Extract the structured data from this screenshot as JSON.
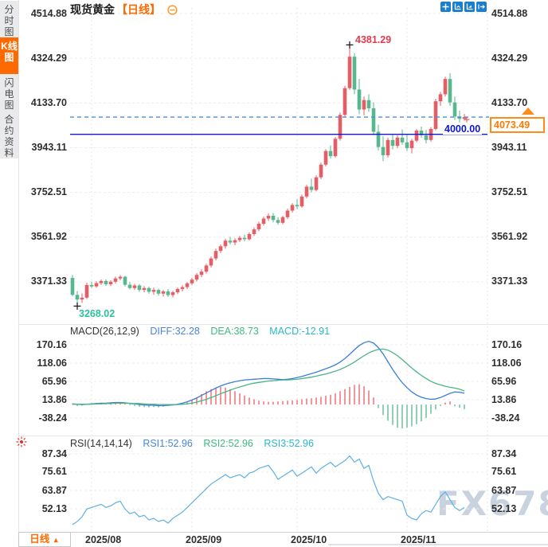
{
  "sidebar": {
    "tabs": [
      {
        "label": "分时图",
        "active": false
      },
      {
        "label": "K线图",
        "active": true
      },
      {
        "label": "闪电图",
        "active": false
      },
      {
        "label": "合约资料",
        "active": false
      }
    ]
  },
  "header": {
    "title": "现货黄金",
    "period_tag": "【日线】"
  },
  "colors": {
    "up": "#e75d66",
    "down": "#57b78e",
    "accent_orange": "#ff6a00",
    "hline_blue": "#1515d8",
    "dashed_blue": "#4b8fd6",
    "diff_blue": "#3c7ed6",
    "dea_green": "#4ab585",
    "macd_cyan": "#2ab5cc",
    "rsi_line": "#5fb0e6",
    "grid": "#ececeb",
    "marker": "#111111"
  },
  "bottom": {
    "period_label": "日线",
    "period_arrow": "▲",
    "dates": [
      "2025/08",
      "2025/09",
      "2025/10",
      "2025/11"
    ]
  },
  "watermark": {
    "text": "FX678"
  },
  "chart_data": [
    {
      "type": "candlestick",
      "title": "现货黄金 日线",
      "yticks": [
        "4514.88",
        "4324.29",
        "4133.70",
        "3943.11",
        "3752.51",
        "3561.92",
        "3371.33"
      ],
      "ylim": [
        3268.02,
        4514.88
      ],
      "month_ticks": [
        {
          "label": "2025/08",
          "index": 4
        },
        {
          "label": "2025/09",
          "index": 25
        },
        {
          "label": "2025/10",
          "index": 47
        },
        {
          "label": "2025/11",
          "index": 70
        }
      ],
      "high_annotation": {
        "index": 58,
        "value": 4381.29,
        "label": "4381.29"
      },
      "low_annotation": {
        "index": 1,
        "value": 3268.02,
        "label": "3268.02"
      },
      "hline": {
        "value": 4000,
        "label": "4000.00"
      },
      "current_price": {
        "value": 4073.49,
        "label": "4073.49"
      },
      "candles": [
        [
          3388,
          3400,
          3310,
          3316
        ],
        [
          3316,
          3332,
          3268.02,
          3296
        ],
        [
          3296,
          3322,
          3282,
          3304
        ],
        [
          3304,
          3368,
          3298,
          3358
        ],
        [
          3358,
          3372,
          3344,
          3352
        ],
        [
          3352,
          3374,
          3346,
          3366
        ],
        [
          3366,
          3382,
          3358,
          3375
        ],
        [
          3375,
          3382,
          3354,
          3361
        ],
        [
          3361,
          3378,
          3353,
          3372
        ],
        [
          3372,
          3394,
          3364,
          3386
        ],
        [
          3386,
          3400,
          3378,
          3393
        ],
        [
          3393,
          3397,
          3352,
          3359
        ],
        [
          3359,
          3371,
          3339,
          3345
        ],
        [
          3345,
          3363,
          3337,
          3356
        ],
        [
          3356,
          3362,
          3329,
          3337
        ],
        [
          3337,
          3353,
          3327,
          3345
        ],
        [
          3345,
          3351,
          3321,
          3329
        ],
        [
          3329,
          3347,
          3317,
          3337
        ],
        [
          3337,
          3343,
          3313,
          3321
        ],
        [
          3321,
          3337,
          3309,
          3331
        ],
        [
          3331,
          3341,
          3307,
          3315
        ],
        [
          3315,
          3333,
          3305,
          3327
        ],
        [
          3327,
          3347,
          3319,
          3341
        ],
        [
          3341,
          3357,
          3331,
          3349
        ],
        [
          3349,
          3371,
          3341,
          3365
        ],
        [
          3365,
          3389,
          3357,
          3381
        ],
        [
          3381,
          3409,
          3373,
          3401
        ],
        [
          3401,
          3425,
          3391,
          3415
        ],
        [
          3415,
          3449,
          3407,
          3441
        ],
        [
          3441,
          3479,
          3433,
          3471
        ],
        [
          3471,
          3513,
          3463,
          3503
        ],
        [
          3503,
          3531,
          3493,
          3523
        ],
        [
          3523,
          3555,
          3513,
          3547
        ],
        [
          3547,
          3563,
          3531,
          3539
        ],
        [
          3539,
          3557,
          3527,
          3549
        ],
        [
          3549,
          3567,
          3541,
          3559
        ],
        [
          3559,
          3573,
          3545,
          3553
        ],
        [
          3553,
          3583,
          3547,
          3575
        ],
        [
          3575,
          3603,
          3567,
          3595
        ],
        [
          3595,
          3627,
          3587,
          3619
        ],
        [
          3619,
          3649,
          3611,
          3641
        ],
        [
          3641,
          3663,
          3631,
          3653
        ],
        [
          3653,
          3665,
          3625,
          3635
        ],
        [
          3635,
          3647,
          3615,
          3623
        ],
        [
          3623,
          3653,
          3617,
          3647
        ],
        [
          3647,
          3683,
          3639,
          3675
        ],
        [
          3675,
          3707,
          3667,
          3699
        ],
        [
          3699,
          3725,
          3681,
          3693
        ],
        [
          3693,
          3743,
          3687,
          3735
        ],
        [
          3735,
          3785,
          3727,
          3777
        ],
        [
          3777,
          3811,
          3753,
          3763
        ],
        [
          3763,
          3825,
          3757,
          3817
        ],
        [
          3817,
          3879,
          3809,
          3871
        ],
        [
          3871,
          3937,
          3863,
          3929
        ],
        [
          3929,
          3953,
          3897,
          3907
        ],
        [
          3907,
          3989,
          3901,
          3981
        ],
        [
          3981,
          4093,
          3973,
          4083
        ],
        [
          4083,
          4207,
          4075,
          4197
        ],
        [
          4197,
          4381.29,
          4189,
          4331
        ],
        [
          4331,
          4346,
          4171,
          4191
        ],
        [
          4191,
          4236,
          4086,
          4106
        ],
        [
          4106,
          4161,
          4081,
          4146
        ],
        [
          4146,
          4171,
          4096,
          4111
        ],
        [
          4111,
          4136,
          3996,
          4011
        ],
        [
          4011,
          4041,
          3931,
          3946
        ],
        [
          3946,
          3991,
          3886,
          3911
        ],
        [
          3911,
          3986,
          3901,
          3976
        ],
        [
          3976,
          4001,
          3936,
          3951
        ],
        [
          3951,
          3996,
          3941,
          3986
        ],
        [
          3986,
          4021,
          3956,
          3966
        ],
        [
          3966,
          3999,
          3929,
          3941
        ],
        [
          3941,
          3981,
          3919,
          3973
        ],
        [
          3973,
          4023,
          3966,
          4016
        ],
        [
          4016,
          4033,
          3986,
          3996
        ],
        [
          3996,
          4019,
          3961,
          3976
        ],
        [
          3976,
          4031,
          3969,
          4023
        ],
        [
          4023,
          4151,
          4017,
          4141
        ],
        [
          4141,
          4181,
          4121,
          4171
        ],
        [
          4171,
          4246,
          4161,
          4236
        ],
        [
          4236,
          4261,
          4121,
          4136
        ],
        [
          4136,
          4161,
          4061,
          4076
        ],
        [
          4076,
          4101,
          4051,
          4066
        ],
        [
          4066,
          4087,
          4059,
          4073.49
        ]
      ]
    },
    {
      "type": "macd",
      "label": "MACD(26,12,9)",
      "diff_label": "DIFF:32.28",
      "dea_label": "DEA:38.73",
      "macd_label": "MACD:-12.91",
      "diff_value": 32.28,
      "dea_value": 38.73,
      "macd_value": -12.91,
      "yticks": [
        "170.16",
        "118.06",
        "65.96",
        "13.86",
        "-38.24"
      ],
      "diff": [
        2,
        1,
        0,
        1,
        2,
        3,
        4,
        4,
        5,
        6,
        6,
        5,
        3,
        2,
        0,
        -1,
        -2,
        -2,
        -3,
        -3,
        -2,
        -1,
        1,
        4,
        8,
        13,
        19,
        26,
        33,
        40,
        47,
        53,
        58,
        62,
        65,
        68,
        70,
        71,
        72,
        73,
        74,
        74,
        73,
        72,
        71,
        72,
        74,
        77,
        80,
        84,
        88,
        92,
        97,
        102,
        107,
        113,
        121,
        131,
        143,
        156,
        168,
        176,
        180,
        175,
        162,
        144,
        122,
        100,
        80,
        62,
        48,
        36,
        27,
        21,
        17,
        15,
        16,
        20,
        26,
        32,
        36,
        35,
        32.28
      ],
      "dea": [
        1,
        1,
        1,
        1,
        1,
        2,
        2,
        3,
        3,
        4,
        4,
        4,
        4,
        3,
        3,
        2,
        1,
        1,
        0,
        0,
        0,
        0,
        0,
        1,
        2,
        4,
        7,
        11,
        15,
        20,
        25,
        31,
        36,
        41,
        46,
        50,
        54,
        58,
        61,
        63,
        65,
        67,
        68,
        69,
        70,
        70,
        71,
        72,
        74,
        76,
        78,
        81,
        84,
        87,
        91,
        95,
        100,
        106,
        113,
        121,
        130,
        139,
        147,
        153,
        157,
        158,
        155,
        148,
        139,
        128,
        116,
        104,
        93,
        83,
        74,
        66,
        60,
        56,
        52,
        49,
        47,
        44,
        38.73
      ],
      "hist": [
        3,
        -4,
        -3,
        2,
        4,
        5,
        5,
        3,
        4,
        6,
        6,
        3,
        -2,
        -4,
        -6,
        -7,
        -8,
        -7,
        -8,
        -6,
        -4,
        -2,
        1,
        3,
        6,
        12,
        20,
        30,
        38,
        44,
        48,
        50,
        48,
        44,
        38,
        32,
        26,
        20,
        15,
        11,
        9,
        8,
        8,
        9,
        10,
        11,
        12,
        13,
        15,
        17,
        18,
        20,
        22,
        25,
        28,
        32,
        38,
        44,
        50,
        56,
        58,
        52,
        40,
        20,
        -10,
        -30,
        -46,
        -58,
        -66,
        -68,
        -66,
        -62,
        -56,
        -48,
        -38,
        -26,
        -14,
        -4,
        6,
        9,
        -5,
        -9,
        -12.91
      ]
    },
    {
      "type": "rsi",
      "label": "RSI(14,14,14)",
      "rsi1_label": "RSI1:52.96",
      "rsi2_label": "RSI2:52.96",
      "rsi3_label": "RSI3:52.96",
      "rsi1_value": 52.96,
      "rsi2_value": 52.96,
      "rsi3_value": 52.96,
      "yticks": [
        "87.34",
        "75.61",
        "63.87",
        "52.13"
      ],
      "values": [
        42,
        44,
        47,
        52,
        53,
        54,
        55,
        53,
        54,
        56,
        57,
        52,
        49,
        50,
        47,
        48,
        45,
        46,
        44,
        45,
        43,
        46,
        48,
        50,
        53,
        56,
        59,
        62,
        65,
        68,
        70,
        72,
        74,
        72,
        73,
        74,
        72,
        75,
        76,
        78,
        79,
        80,
        76,
        71,
        73,
        75,
        77,
        73,
        75,
        77,
        79,
        75,
        78,
        80,
        82,
        79,
        81,
        83,
        86,
        82,
        84,
        78,
        80,
        70,
        62,
        58,
        60,
        59,
        58,
        57,
        48,
        46,
        45,
        49,
        51,
        50,
        55,
        60,
        63,
        58,
        53,
        51,
        52.96
      ]
    }
  ]
}
